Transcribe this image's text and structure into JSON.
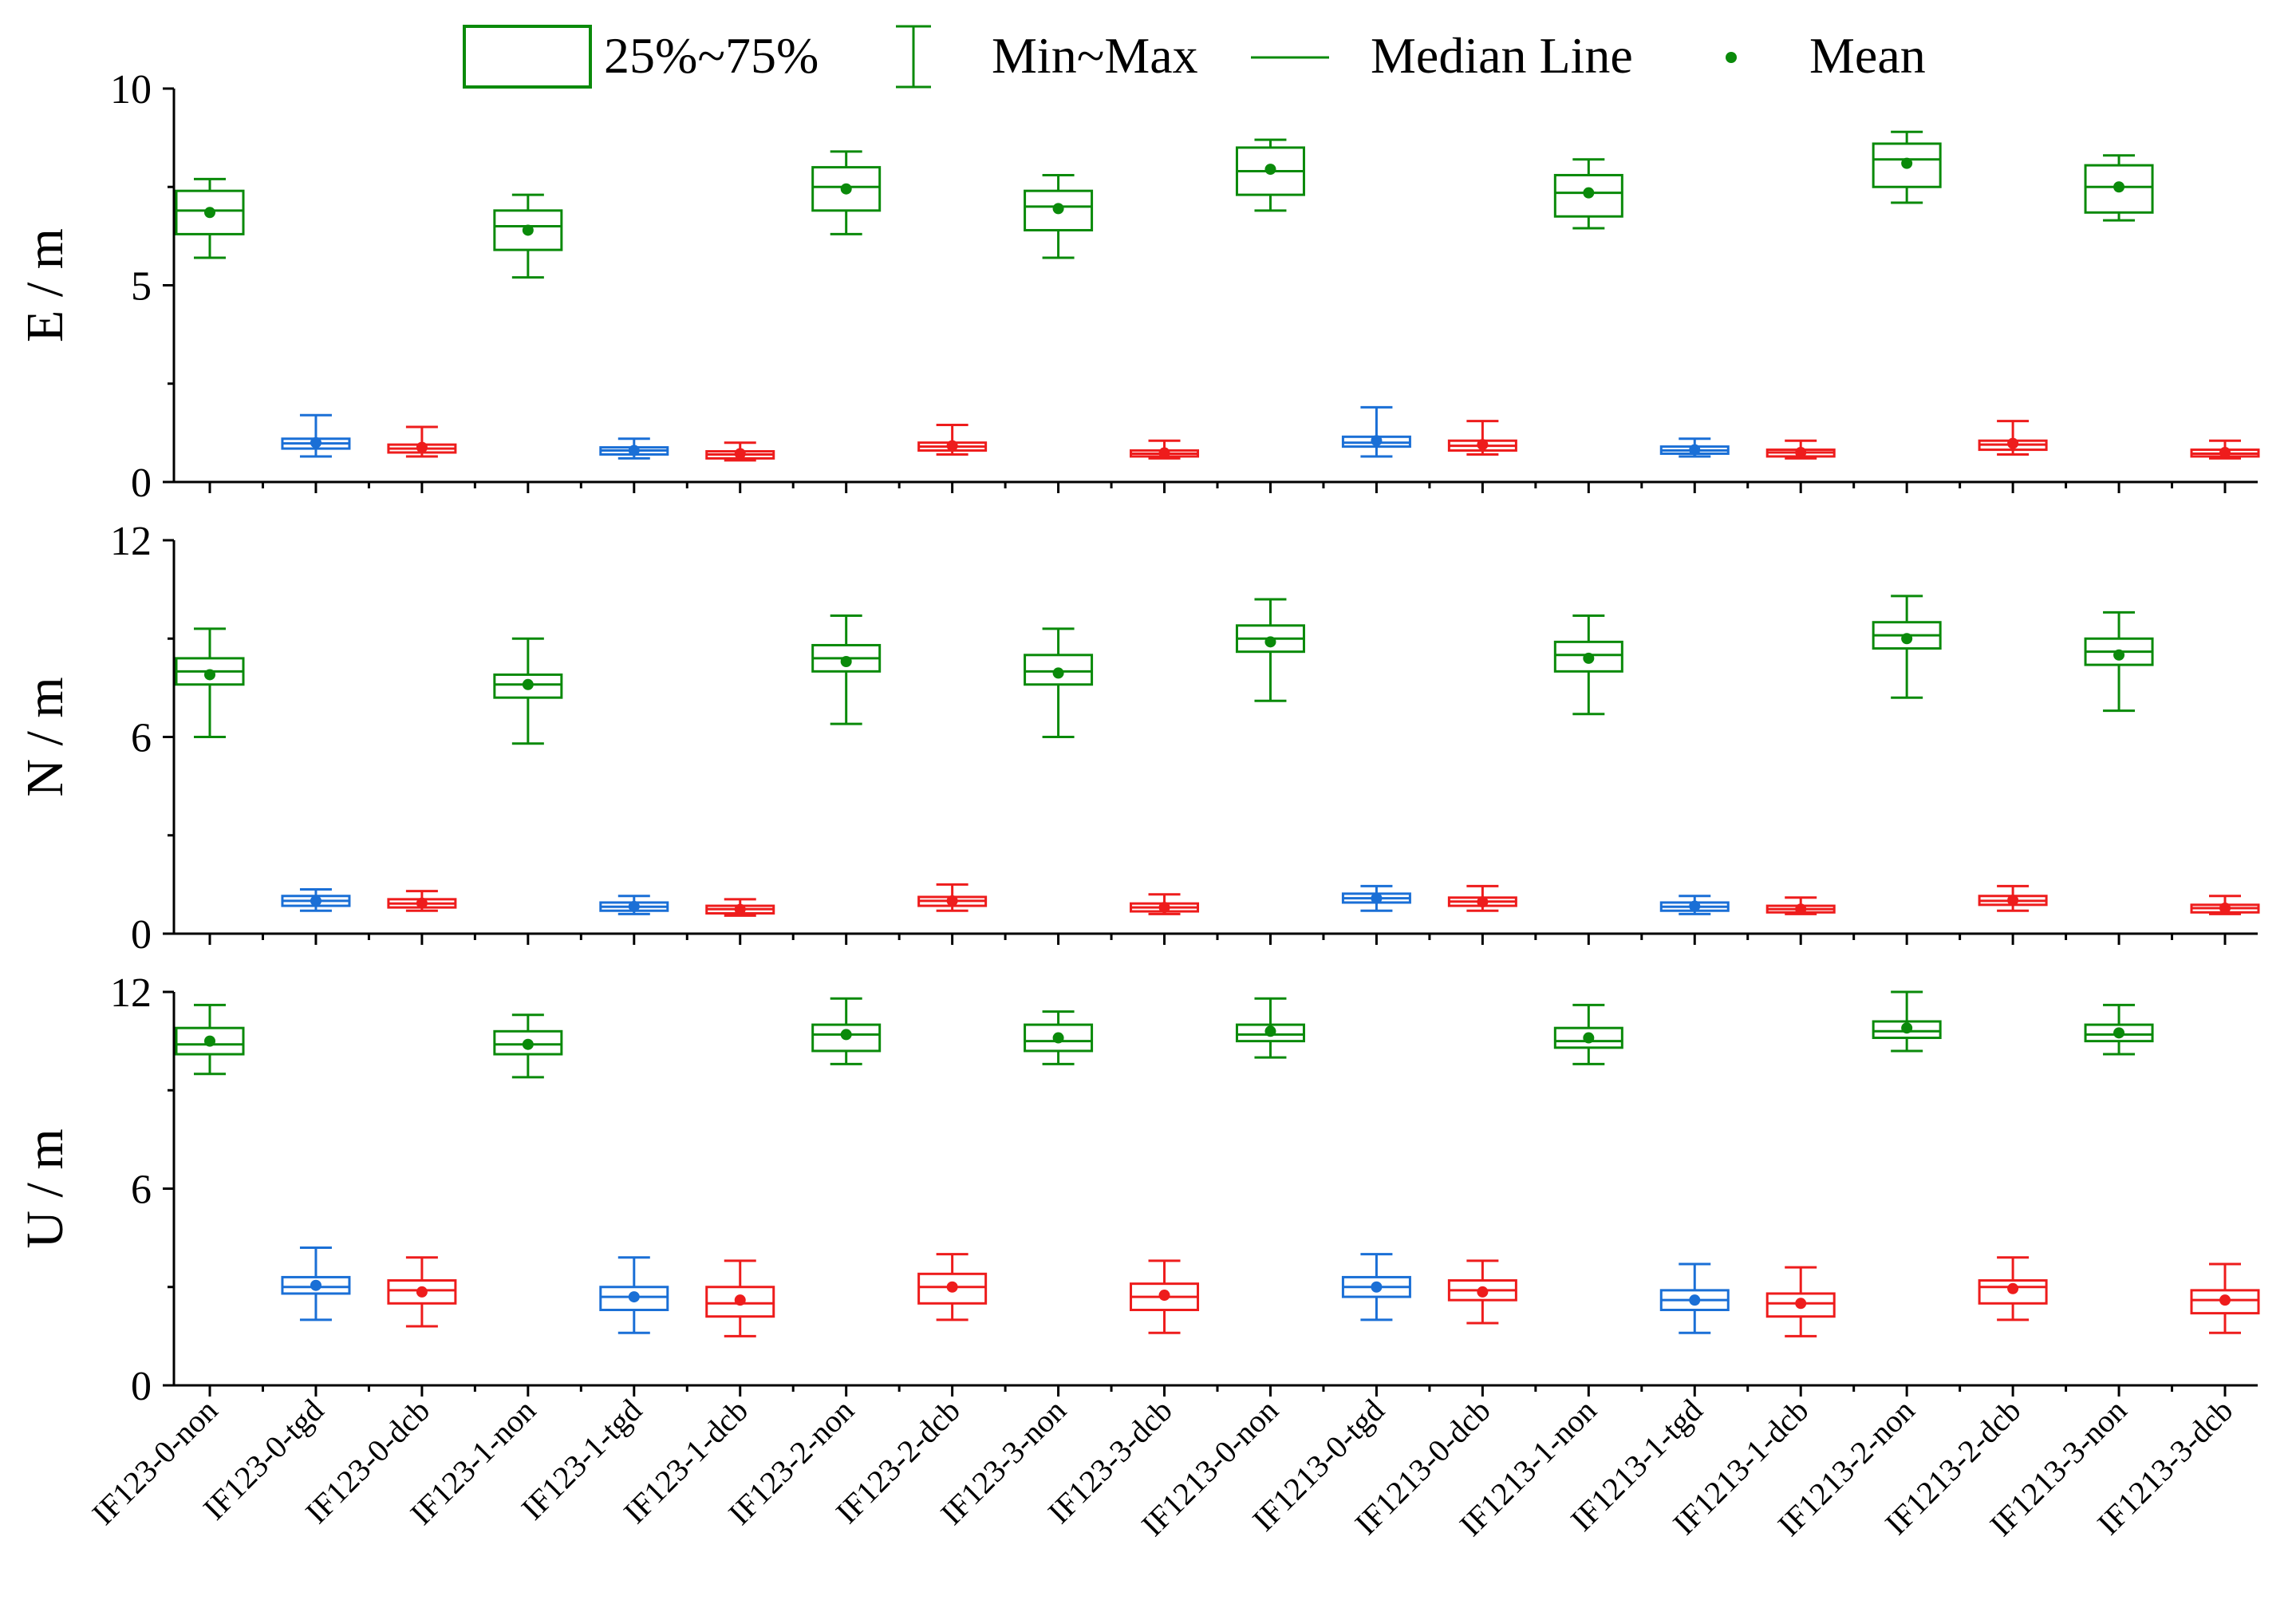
{
  "legend": {
    "items": [
      {
        "symbol": "box",
        "label": "25%~75%"
      },
      {
        "symbol": "whisker",
        "label": "Min~Max"
      },
      {
        "symbol": "line",
        "label": "Median Line"
      },
      {
        "symbol": "dot",
        "label": "Mean"
      }
    ],
    "placement": "top-center",
    "color": "#0a8a0a"
  },
  "colors": {
    "non": "#0a8a0a",
    "tgd": "#1a6fd6",
    "dcb": "#ee1c1c"
  },
  "chart_data": {
    "type": "box",
    "categories": [
      "IF123-0-non",
      "IF123-0-tgd",
      "IF123-0-dcb",
      "IF123-1-non",
      "IF123-1-tgd",
      "IF123-1-dcb",
      "IF123-2-non",
      "IF123-2-dcb",
      "IF123-3-non",
      "IF123-3-dcb",
      "IF1213-0-non",
      "IF1213-0-tgd",
      "IF1213-0-dcb",
      "IF1213-1-non",
      "IF1213-1-tgd",
      "IF1213-1-dcb",
      "IF1213-2-non",
      "IF1213-2-dcb",
      "IF1213-3-non",
      "IF1213-3-dcb"
    ],
    "category_groups": [
      "non",
      "tgd",
      "dcb",
      "non",
      "tgd",
      "dcb",
      "non",
      "dcb",
      "non",
      "dcb",
      "non",
      "tgd",
      "dcb",
      "non",
      "tgd",
      "dcb",
      "non",
      "dcb",
      "non",
      "dcb"
    ],
    "panels": [
      {
        "ylabel": "E / m",
        "ylim": [
          0,
          10
        ],
        "yticks": [
          0,
          5,
          10
        ],
        "stats": [
          {
            "min": 5.7,
            "q1": 6.3,
            "median": 6.9,
            "q3": 7.4,
            "max": 7.7,
            "mean": 6.85
          },
          {
            "min": 0.65,
            "q1": 0.85,
            "median": 0.98,
            "q3": 1.1,
            "max": 1.7,
            "mean": 1.0
          },
          {
            "min": 0.65,
            "q1": 0.75,
            "median": 0.85,
            "q3": 0.95,
            "max": 1.4,
            "mean": 0.88
          },
          {
            "min": 5.2,
            "q1": 5.9,
            "median": 6.5,
            "q3": 6.9,
            "max": 7.3,
            "mean": 6.4
          },
          {
            "min": 0.6,
            "q1": 0.7,
            "median": 0.8,
            "q3": 0.88,
            "max": 1.1,
            "mean": 0.8
          },
          {
            "min": 0.55,
            "q1": 0.6,
            "median": 0.7,
            "q3": 0.78,
            "max": 1.0,
            "mean": 0.72
          },
          {
            "min": 6.3,
            "q1": 6.9,
            "median": 7.5,
            "q3": 8.0,
            "max": 8.4,
            "mean": 7.45
          },
          {
            "min": 0.7,
            "q1": 0.8,
            "median": 0.9,
            "q3": 1.0,
            "max": 1.45,
            "mean": 0.92
          },
          {
            "min": 5.7,
            "q1": 6.4,
            "median": 7.0,
            "q3": 7.4,
            "max": 7.8,
            "mean": 6.95
          },
          {
            "min": 0.6,
            "q1": 0.65,
            "median": 0.72,
            "q3": 0.8,
            "max": 1.05,
            "mean": 0.74
          },
          {
            "min": 6.9,
            "q1": 7.3,
            "median": 7.9,
            "q3": 8.5,
            "max": 8.7,
            "mean": 7.95
          },
          {
            "min": 0.65,
            "q1": 0.9,
            "median": 1.0,
            "q3": 1.15,
            "max": 1.9,
            "mean": 1.05
          },
          {
            "min": 0.7,
            "q1": 0.8,
            "median": 0.92,
            "q3": 1.05,
            "max": 1.55,
            "mean": 0.95
          },
          {
            "min": 6.45,
            "q1": 6.75,
            "median": 7.35,
            "q3": 7.8,
            "max": 8.2,
            "mean": 7.35
          },
          {
            "min": 0.65,
            "q1": 0.72,
            "median": 0.8,
            "q3": 0.9,
            "max": 1.1,
            "mean": 0.82
          },
          {
            "min": 0.6,
            "q1": 0.65,
            "median": 0.75,
            "q3": 0.82,
            "max": 1.05,
            "mean": 0.75
          },
          {
            "min": 7.1,
            "q1": 7.5,
            "median": 8.2,
            "q3": 8.6,
            "max": 8.9,
            "mean": 8.1
          },
          {
            "min": 0.7,
            "q1": 0.82,
            "median": 0.95,
            "q3": 1.05,
            "max": 1.55,
            "mean": 0.98
          },
          {
            "min": 6.65,
            "q1": 6.85,
            "median": 7.5,
            "q3": 8.05,
            "max": 8.3,
            "mean": 7.5
          },
          {
            "min": 0.6,
            "q1": 0.65,
            "median": 0.72,
            "q3": 0.82,
            "max": 1.05,
            "mean": 0.75
          }
        ]
      },
      {
        "ylabel": "N / m",
        "ylim": [
          0,
          12
        ],
        "yticks": [
          0,
          6,
          12
        ],
        "stats": [
          {
            "min": 6.0,
            "q1": 7.6,
            "median": 8.0,
            "q3": 8.4,
            "max": 9.3,
            "mean": 7.9
          },
          {
            "min": 0.7,
            "q1": 0.85,
            "median": 1.0,
            "q3": 1.15,
            "max": 1.35,
            "mean": 1.0
          },
          {
            "min": 0.7,
            "q1": 0.8,
            "median": 0.92,
            "q3": 1.05,
            "max": 1.3,
            "mean": 0.93
          },
          {
            "min": 5.8,
            "q1": 7.2,
            "median": 7.6,
            "q3": 7.9,
            "max": 9.0,
            "mean": 7.6
          },
          {
            "min": 0.6,
            "q1": 0.7,
            "median": 0.82,
            "q3": 0.95,
            "max": 1.15,
            "mean": 0.83
          },
          {
            "min": 0.55,
            "q1": 0.62,
            "median": 0.75,
            "q3": 0.85,
            "max": 1.05,
            "mean": 0.74
          },
          {
            "min": 6.4,
            "q1": 8.0,
            "median": 8.4,
            "q3": 8.8,
            "max": 9.7,
            "mean": 8.3
          },
          {
            "min": 0.7,
            "q1": 0.85,
            "median": 1.0,
            "q3": 1.12,
            "max": 1.5,
            "mean": 1.0
          },
          {
            "min": 6.0,
            "q1": 7.6,
            "median": 8.0,
            "q3": 8.5,
            "max": 9.3,
            "mean": 7.95
          },
          {
            "min": 0.6,
            "q1": 0.68,
            "median": 0.8,
            "q3": 0.92,
            "max": 1.2,
            "mean": 0.8
          },
          {
            "min": 7.1,
            "q1": 8.6,
            "median": 9.0,
            "q3": 9.4,
            "max": 10.2,
            "mean": 8.9
          },
          {
            "min": 0.7,
            "q1": 0.95,
            "median": 1.08,
            "q3": 1.22,
            "max": 1.45,
            "mean": 1.08
          },
          {
            "min": 0.7,
            "q1": 0.85,
            "median": 0.98,
            "q3": 1.1,
            "max": 1.45,
            "mean": 0.97
          },
          {
            "min": 6.7,
            "q1": 8.0,
            "median": 8.5,
            "q3": 8.9,
            "max": 9.7,
            "mean": 8.4
          },
          {
            "min": 0.6,
            "q1": 0.7,
            "median": 0.82,
            "q3": 0.95,
            "max": 1.15,
            "mean": 0.84
          },
          {
            "min": 0.6,
            "q1": 0.65,
            "median": 0.75,
            "q3": 0.85,
            "max": 1.1,
            "mean": 0.75
          },
          {
            "min": 7.2,
            "q1": 8.7,
            "median": 9.1,
            "q3": 9.5,
            "max": 10.3,
            "mean": 9.0
          },
          {
            "min": 0.7,
            "q1": 0.88,
            "median": 1.0,
            "q3": 1.15,
            "max": 1.45,
            "mean": 1.02
          },
          {
            "min": 6.8,
            "q1": 8.2,
            "median": 8.6,
            "q3": 9.0,
            "max": 9.8,
            "mean": 8.5
          },
          {
            "min": 0.6,
            "q1": 0.65,
            "median": 0.78,
            "q3": 0.88,
            "max": 1.15,
            "mean": 0.78
          }
        ]
      },
      {
        "ylabel": "U / m",
        "ylim": [
          0,
          12
        ],
        "yticks": [
          0,
          6,
          12
        ],
        "stats": [
          {
            "min": 9.5,
            "q1": 10.1,
            "median": 10.4,
            "q3": 10.9,
            "max": 11.6,
            "mean": 10.5
          },
          {
            "min": 2.0,
            "q1": 2.8,
            "median": 3.0,
            "q3": 3.3,
            "max": 4.2,
            "mean": 3.05
          },
          {
            "min": 1.8,
            "q1": 2.5,
            "median": 2.9,
            "q3": 3.2,
            "max": 3.9,
            "mean": 2.85
          },
          {
            "min": 9.4,
            "q1": 10.1,
            "median": 10.4,
            "q3": 10.8,
            "max": 11.3,
            "mean": 10.4
          },
          {
            "min": 1.6,
            "q1": 2.3,
            "median": 2.7,
            "q3": 3.0,
            "max": 3.9,
            "mean": 2.7
          },
          {
            "min": 1.5,
            "q1": 2.1,
            "median": 2.5,
            "q3": 3.0,
            "max": 3.8,
            "mean": 2.6
          },
          {
            "min": 9.8,
            "q1": 10.2,
            "median": 10.7,
            "q3": 11.0,
            "max": 11.8,
            "mean": 10.7
          },
          {
            "min": 2.0,
            "q1": 2.5,
            "median": 3.0,
            "q3": 3.4,
            "max": 4.0,
            "mean": 3.0
          },
          {
            "min": 9.8,
            "q1": 10.2,
            "median": 10.5,
            "q3": 11.0,
            "max": 11.4,
            "mean": 10.6
          },
          {
            "min": 1.6,
            "q1": 2.3,
            "median": 2.7,
            "q3": 3.1,
            "max": 3.8,
            "mean": 2.75
          },
          {
            "min": 10.0,
            "q1": 10.5,
            "median": 10.7,
            "q3": 11.0,
            "max": 11.8,
            "mean": 10.8
          },
          {
            "min": 2.0,
            "q1": 2.7,
            "median": 3.0,
            "q3": 3.3,
            "max": 4.0,
            "mean": 3.0
          },
          {
            "min": 1.9,
            "q1": 2.6,
            "median": 2.9,
            "q3": 3.2,
            "max": 3.8,
            "mean": 2.85
          },
          {
            "min": 9.8,
            "q1": 10.3,
            "median": 10.5,
            "q3": 10.9,
            "max": 11.6,
            "mean": 10.6
          },
          {
            "min": 1.6,
            "q1": 2.3,
            "median": 2.6,
            "q3": 2.9,
            "max": 3.7,
            "mean": 2.6
          },
          {
            "min": 1.5,
            "q1": 2.1,
            "median": 2.5,
            "q3": 2.8,
            "max": 3.6,
            "mean": 2.5
          },
          {
            "min": 10.2,
            "q1": 10.6,
            "median": 10.8,
            "q3": 11.1,
            "max": 12.0,
            "mean": 10.9
          },
          {
            "min": 2.0,
            "q1": 2.5,
            "median": 3.0,
            "q3": 3.2,
            "max": 3.9,
            "mean": 2.95
          },
          {
            "min": 10.1,
            "q1": 10.5,
            "median": 10.7,
            "q3": 11.0,
            "max": 11.6,
            "mean": 10.75
          },
          {
            "min": 1.6,
            "q1": 2.2,
            "median": 2.6,
            "q3": 2.9,
            "max": 3.7,
            "mean": 2.6
          }
        ]
      }
    ]
  }
}
